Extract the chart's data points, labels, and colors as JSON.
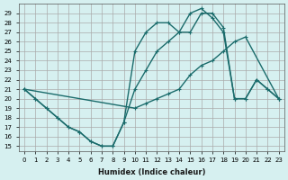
{
  "xlabel": "Humidex (Indice chaleur)",
  "ylabel": "",
  "background_color": "#d6f0f0",
  "grid_color": "#aaaaaa",
  "line_color": "#1a6b6b",
  "xlim": [
    -0.5,
    23.5
  ],
  "ylim": [
    14.5,
    30
  ],
  "xticks": [
    0,
    1,
    2,
    3,
    4,
    5,
    6,
    7,
    8,
    9,
    10,
    11,
    12,
    13,
    14,
    15,
    16,
    17,
    18,
    19,
    20,
    21,
    22,
    23
  ],
  "yticks": [
    15,
    16,
    17,
    18,
    19,
    20,
    21,
    22,
    23,
    24,
    25,
    26,
    27,
    28,
    29
  ],
  "series1_x": [
    0,
    1,
    2,
    3,
    4,
    5,
    6,
    7,
    8,
    9,
    10,
    11,
    12,
    13,
    14,
    15,
    16,
    17,
    18,
    19,
    20,
    21,
    22,
    23
  ],
  "series1_y": [
    21,
    20,
    19,
    18,
    17,
    16.5,
    15.5,
    15,
    15,
    17.5,
    21,
    23,
    25,
    26,
    27,
    27,
    29,
    29,
    27.5,
    20,
    20,
    22,
    21,
    20
  ],
  "series2_x": [
    0,
    1,
    2,
    3,
    4,
    5,
    6,
    7,
    8,
    9,
    10,
    11,
    12,
    13,
    14,
    15,
    16,
    17,
    18,
    19,
    20,
    21,
    22,
    23
  ],
  "series2_y": [
    21,
    20,
    19,
    18,
    17,
    16.5,
    15.5,
    15,
    15,
    17.5,
    25,
    27,
    28,
    28,
    27,
    29,
    29.5,
    28.5,
    27,
    20,
    20,
    22,
    21,
    20
  ],
  "series3_x": [
    0,
    10,
    11,
    12,
    13,
    14,
    15,
    16,
    17,
    18,
    19,
    20,
    23
  ],
  "series3_y": [
    21,
    19,
    19.5,
    20,
    20.5,
    21,
    22.5,
    23.5,
    24,
    25,
    26,
    26.5,
    20
  ]
}
